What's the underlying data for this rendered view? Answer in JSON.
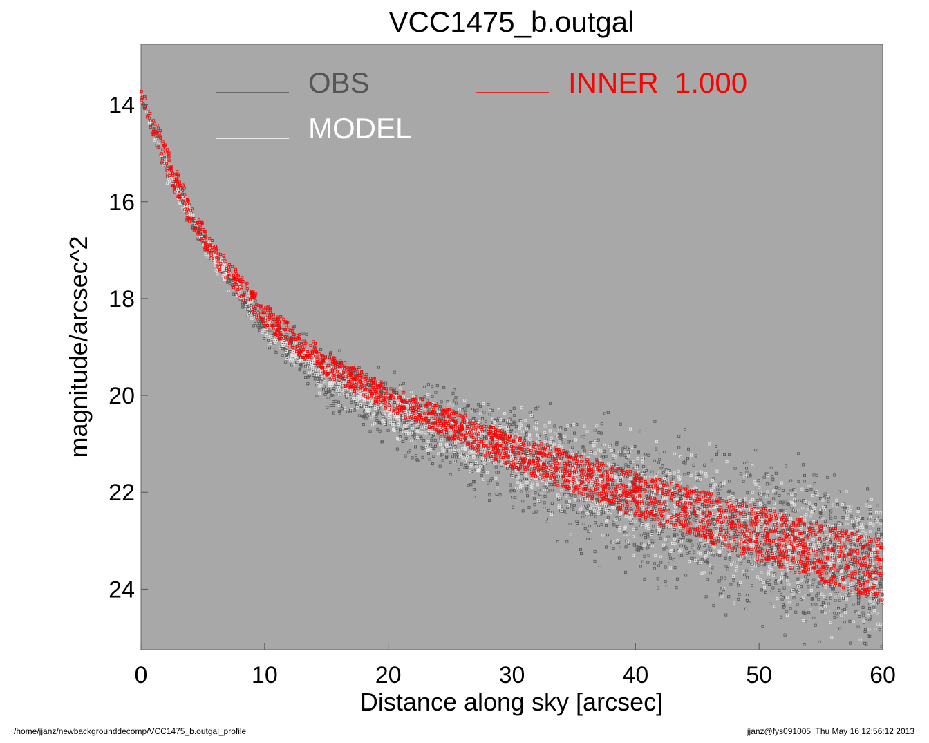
{
  "chart_data": {
    "type": "scatter",
    "title": "VCC1475_b.outgal",
    "xlabel": "Distance along sky [arcsec]",
    "ylabel": "magnitude/arcsec^2",
    "xlim": [
      0,
      60
    ],
    "ylim": [
      25.25,
      12.75
    ],
    "y_inverted": true,
    "x_ticks": [
      0,
      10,
      20,
      30,
      40,
      50,
      60
    ],
    "y_ticks": [
      14,
      16,
      18,
      20,
      22,
      24
    ],
    "plot_background": "#a8a8a8",
    "legend_placement": "top",
    "series": [
      {
        "name": "OBS",
        "color": "#555555",
        "marker": "square",
        "band_x": [
          0,
          2,
          5,
          10,
          15,
          20,
          30,
          40,
          50,
          60
        ],
        "band_center": [
          13.8,
          15.3,
          16.8,
          18.6,
          19.6,
          20.3,
          21.2,
          22.2,
          23.0,
          23.7
        ],
        "band_spread": [
          0.1,
          0.3,
          0.3,
          0.4,
          0.9,
          1.0,
          1.5,
          2.0,
          2.3,
          2.4
        ]
      },
      {
        "name": "MODEL",
        "color": "#e8e8e8",
        "marker": "square",
        "band_x": [
          0,
          2,
          5,
          10,
          15,
          20,
          30,
          40,
          50,
          60
        ],
        "band_center": [
          13.8,
          15.3,
          16.8,
          18.6,
          19.6,
          20.3,
          21.2,
          22.1,
          22.9,
          23.6
        ],
        "band_spread": [
          0.1,
          0.3,
          0.3,
          0.35,
          0.5,
          0.7,
          1.1,
          1.5,
          1.8,
          2.0
        ]
      },
      {
        "name": "INNER 1.000",
        "color": "#ff0000",
        "marker": "square",
        "band_x": [
          0,
          1,
          2,
          4,
          6,
          10,
          15,
          20,
          30,
          40,
          50,
          60
        ],
        "band_lower": [
          13.7,
          14.1,
          14.8,
          16.0,
          16.9,
          18.1,
          19.1,
          19.8,
          20.8,
          21.6,
          22.3,
          23.0
        ],
        "band_upper": [
          13.9,
          14.7,
          15.4,
          16.5,
          17.3,
          18.6,
          19.6,
          20.3,
          21.5,
          22.5,
          23.4,
          24.3
        ]
      }
    ],
    "legend": [
      {
        "label": "OBS",
        "color": "#555555"
      },
      {
        "label": "MODEL",
        "color": "#ffffff"
      },
      {
        "label": "INNER  1.000",
        "color": "#ff0000"
      }
    ]
  },
  "footer": {
    "left": "/home/jjanz/newbackgrounddecomp/VCC1475_b.outgal_profile",
    "right": "jjanz@fys091005  Thu May 16 12:56:12 2013"
  }
}
